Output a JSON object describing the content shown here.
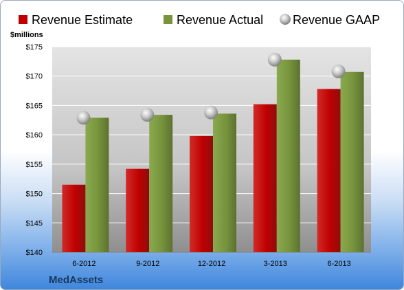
{
  "brand": "MedAssets",
  "colors": {
    "estimate": "#c00000",
    "actual": "#77933c",
    "gaap": "#a6a6a6"
  },
  "chart_data": {
    "type": "bar",
    "ylabel": "$millions",
    "ylim": [
      140,
      175
    ],
    "ytick_step": 5,
    "ytick_prefix": "$",
    "grid": true,
    "legend_position": "top",
    "categories": [
      "6-2012",
      "9-2012",
      "12-2012",
      "3-2013",
      "6-2013"
    ],
    "series": [
      {
        "name": "Revenue Estimate",
        "type": "bar",
        "values": [
          151.5,
          154.2,
          159.8,
          165.2,
          167.8
        ]
      },
      {
        "name": "Revenue Actual",
        "type": "bar",
        "values": [
          162.9,
          163.4,
          163.6,
          172.8,
          170.7
        ]
      },
      {
        "name": "Revenue GAAP",
        "type": "scatter",
        "values": [
          162.9,
          163.4,
          163.8,
          172.8,
          170.8
        ]
      }
    ]
  }
}
